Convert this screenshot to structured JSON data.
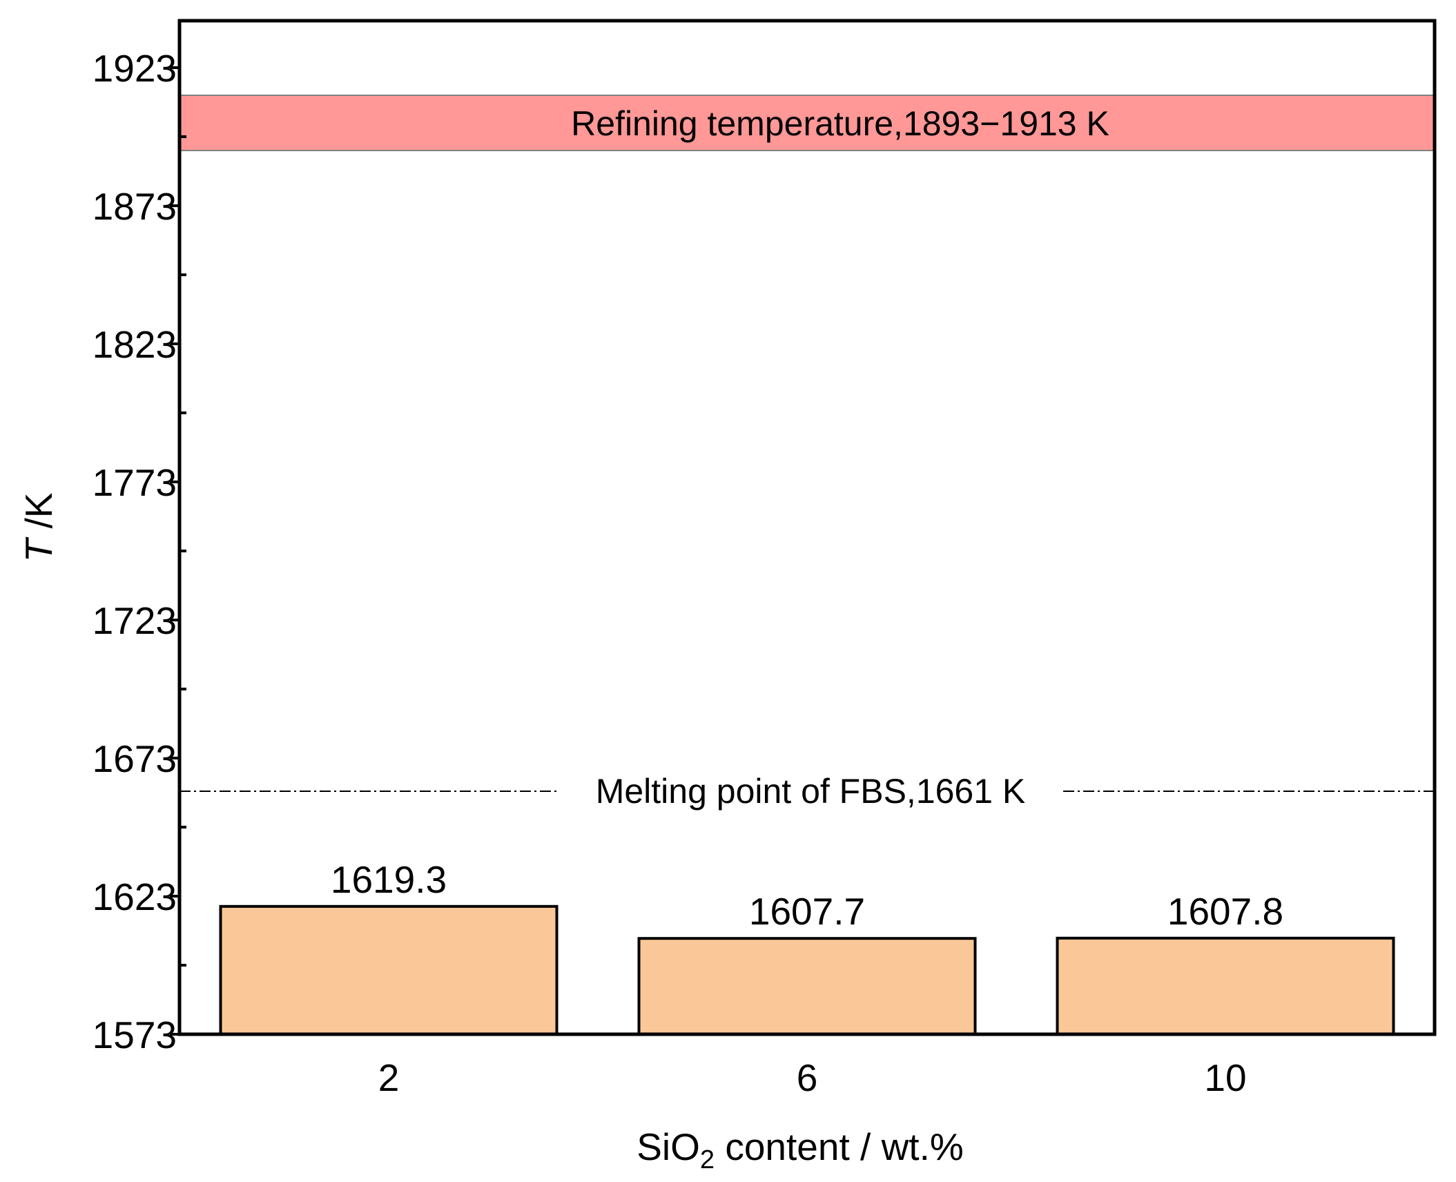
{
  "chart_data": {
    "type": "bar",
    "categories": [
      "2",
      "6",
      "10"
    ],
    "values": [
      1619.3,
      1607.7,
      1607.8
    ],
    "value_labels": [
      "1619.3",
      "1607.7",
      "1607.8"
    ],
    "xlabel": {
      "prefix": "SiO",
      "subscript": "2",
      "suffix": " content / wt.%"
    },
    "ylabel": {
      "italic": "T",
      "rest": " /K"
    },
    "ylim": [
      1573,
      1940
    ],
    "yticks": [
      1573,
      1623,
      1673,
      1723,
      1773,
      1823,
      1873,
      1923
    ],
    "ytick_labels": [
      "1573",
      "1623",
      "1673",
      "1723",
      "1773",
      "1823",
      "1873",
      "1923"
    ],
    "minor_yticks": [
      1598,
      1648,
      1698,
      1748,
      1798,
      1848,
      1898
    ],
    "refining_band": {
      "low": 1893,
      "high": 1913,
      "label": "Refining temperature,1893−1913 K"
    },
    "melting_line": {
      "value": 1661,
      "label": "Melting point of FBS,1661 K"
    },
    "colors": {
      "bar_fill": "#FAC898",
      "band_fill": "#FF9896",
      "band_stroke": "#808080",
      "axis": "#000000"
    }
  }
}
